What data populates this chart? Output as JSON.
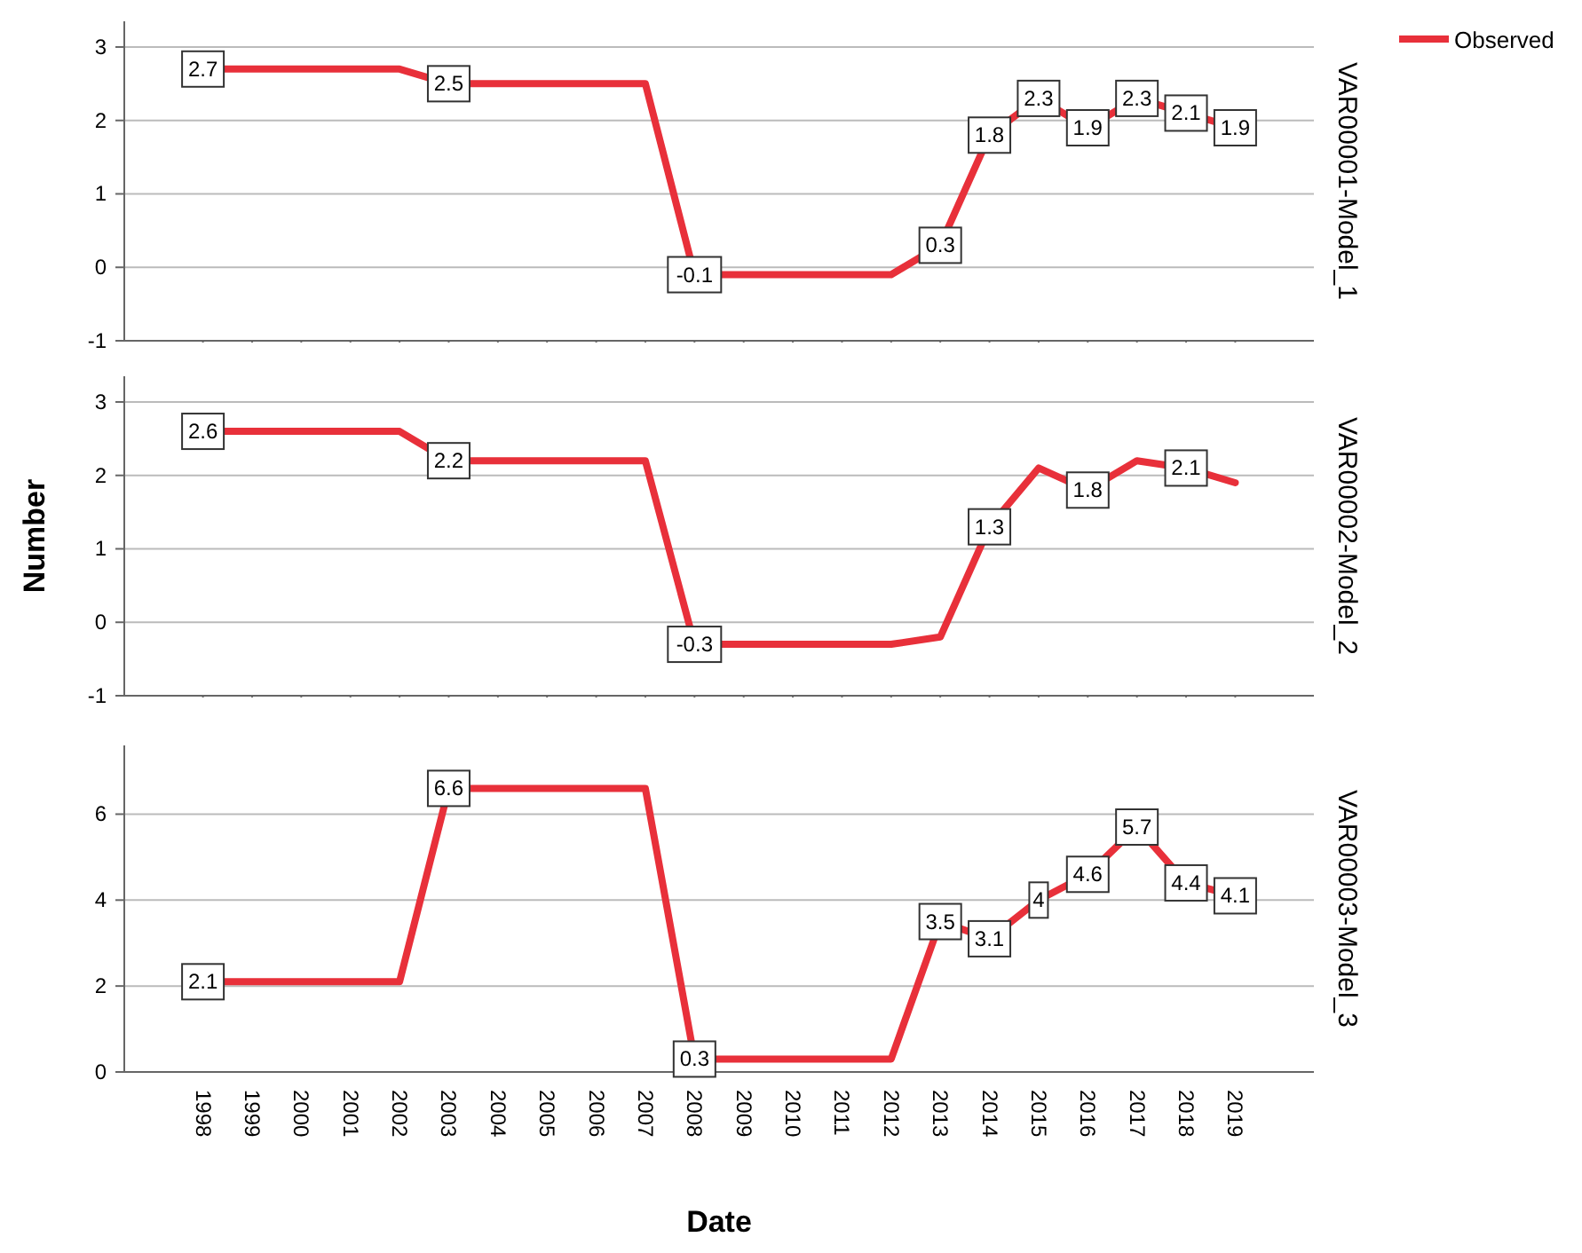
{
  "chart_data": [
    {
      "type": "line",
      "y2label": "VAR00001-Model_1",
      "categories": [
        "1998",
        "1999",
        "2000",
        "2001",
        "2002",
        "2003",
        "2004",
        "2005",
        "2006",
        "2007",
        "2008",
        "2009",
        "2010",
        "2011",
        "2012",
        "2013",
        "2014",
        "2015",
        "2016",
        "2017",
        "2018",
        "2019"
      ],
      "series": [
        {
          "name": "Observed",
          "color": "#e8303a",
          "values": [
            2.7,
            2.7,
            2.7,
            2.7,
            2.7,
            2.5,
            2.5,
            2.5,
            2.5,
            2.5,
            -0.1,
            -0.1,
            -0.1,
            -0.1,
            -0.1,
            0.3,
            1.8,
            2.3,
            1.9,
            2.3,
            2.1,
            1.9
          ],
          "value_labels": [
            "2.7",
            null,
            null,
            null,
            null,
            "2.5",
            null,
            null,
            null,
            null,
            "-0.1",
            null,
            null,
            null,
            null,
            "0.3",
            "1.8",
            "2.3",
            "1.9",
            "2.3",
            "2.1",
            "1.9"
          ]
        }
      ],
      "ylim": [
        -1,
        3.35
      ],
      "yticks": [
        -1,
        0,
        1,
        2,
        3
      ],
      "grid": "y",
      "legend": "right",
      "tick_labels": "y"
    },
    {
      "type": "line",
      "y2label": "VAR00002-Model_2",
      "ylabel": "Number",
      "categories": [
        "1998",
        "1999",
        "2000",
        "2001",
        "2002",
        "2003",
        "2004",
        "2005",
        "2006",
        "2007",
        "2008",
        "2009",
        "2010",
        "2011",
        "2012",
        "2013",
        "2014",
        "2015",
        "2016",
        "2017",
        "2018",
        "2019"
      ],
      "series": [
        {
          "color": "#e8303a",
          "values": [
            2.6,
            2.6,
            2.6,
            2.6,
            2.6,
            2.2,
            2.2,
            2.2,
            2.2,
            2.2,
            -0.3,
            -0.3,
            -0.3,
            -0.3,
            -0.3,
            -0.2,
            1.3,
            2.1,
            1.8,
            2.2,
            2.1,
            1.9
          ],
          "value_labels": [
            "2.6",
            null,
            null,
            null,
            null,
            "2.2",
            null,
            null,
            null,
            null,
            "-0.3",
            null,
            null,
            null,
            null,
            null,
            "1.3",
            null,
            "1.8",
            null,
            "2.1",
            null
          ]
        }
      ],
      "ylim": [
        -1,
        3.35
      ],
      "yticks": [
        -1,
        0,
        1,
        2,
        3
      ],
      "grid": "y",
      "tick_labels": "y"
    },
    {
      "type": "line",
      "y2label": "VAR00003-Model_3",
      "xlabel": "Date",
      "categories": [
        "1998",
        "1999",
        "2000",
        "2001",
        "2002",
        "2003",
        "2004",
        "2005",
        "2006",
        "2007",
        "2008",
        "2009",
        "2010",
        "2011",
        "2012",
        "2013",
        "2014",
        "2015",
        "2016",
        "2017",
        "2018",
        "2019"
      ],
      "series": [
        {
          "color": "#e8303a",
          "values": [
            2.1,
            2.1,
            2.1,
            2.1,
            2.1,
            6.6,
            6.6,
            6.6,
            6.6,
            6.6,
            0.3,
            0.3,
            0.3,
            0.3,
            0.3,
            3.5,
            3.1,
            4,
            4.6,
            5.7,
            4.4,
            4.1
          ],
          "value_labels": [
            "2.1",
            null,
            null,
            null,
            null,
            "6.6",
            null,
            null,
            null,
            null,
            "0.3",
            null,
            null,
            null,
            null,
            "3.5",
            "3.1",
            "4",
            "4.6",
            "5.7",
            "4.4",
            "4.1"
          ]
        }
      ],
      "ylim": [
        0,
        7.6
      ],
      "yticks": [
        0,
        2,
        4,
        6
      ],
      "grid": "y"
    }
  ]
}
